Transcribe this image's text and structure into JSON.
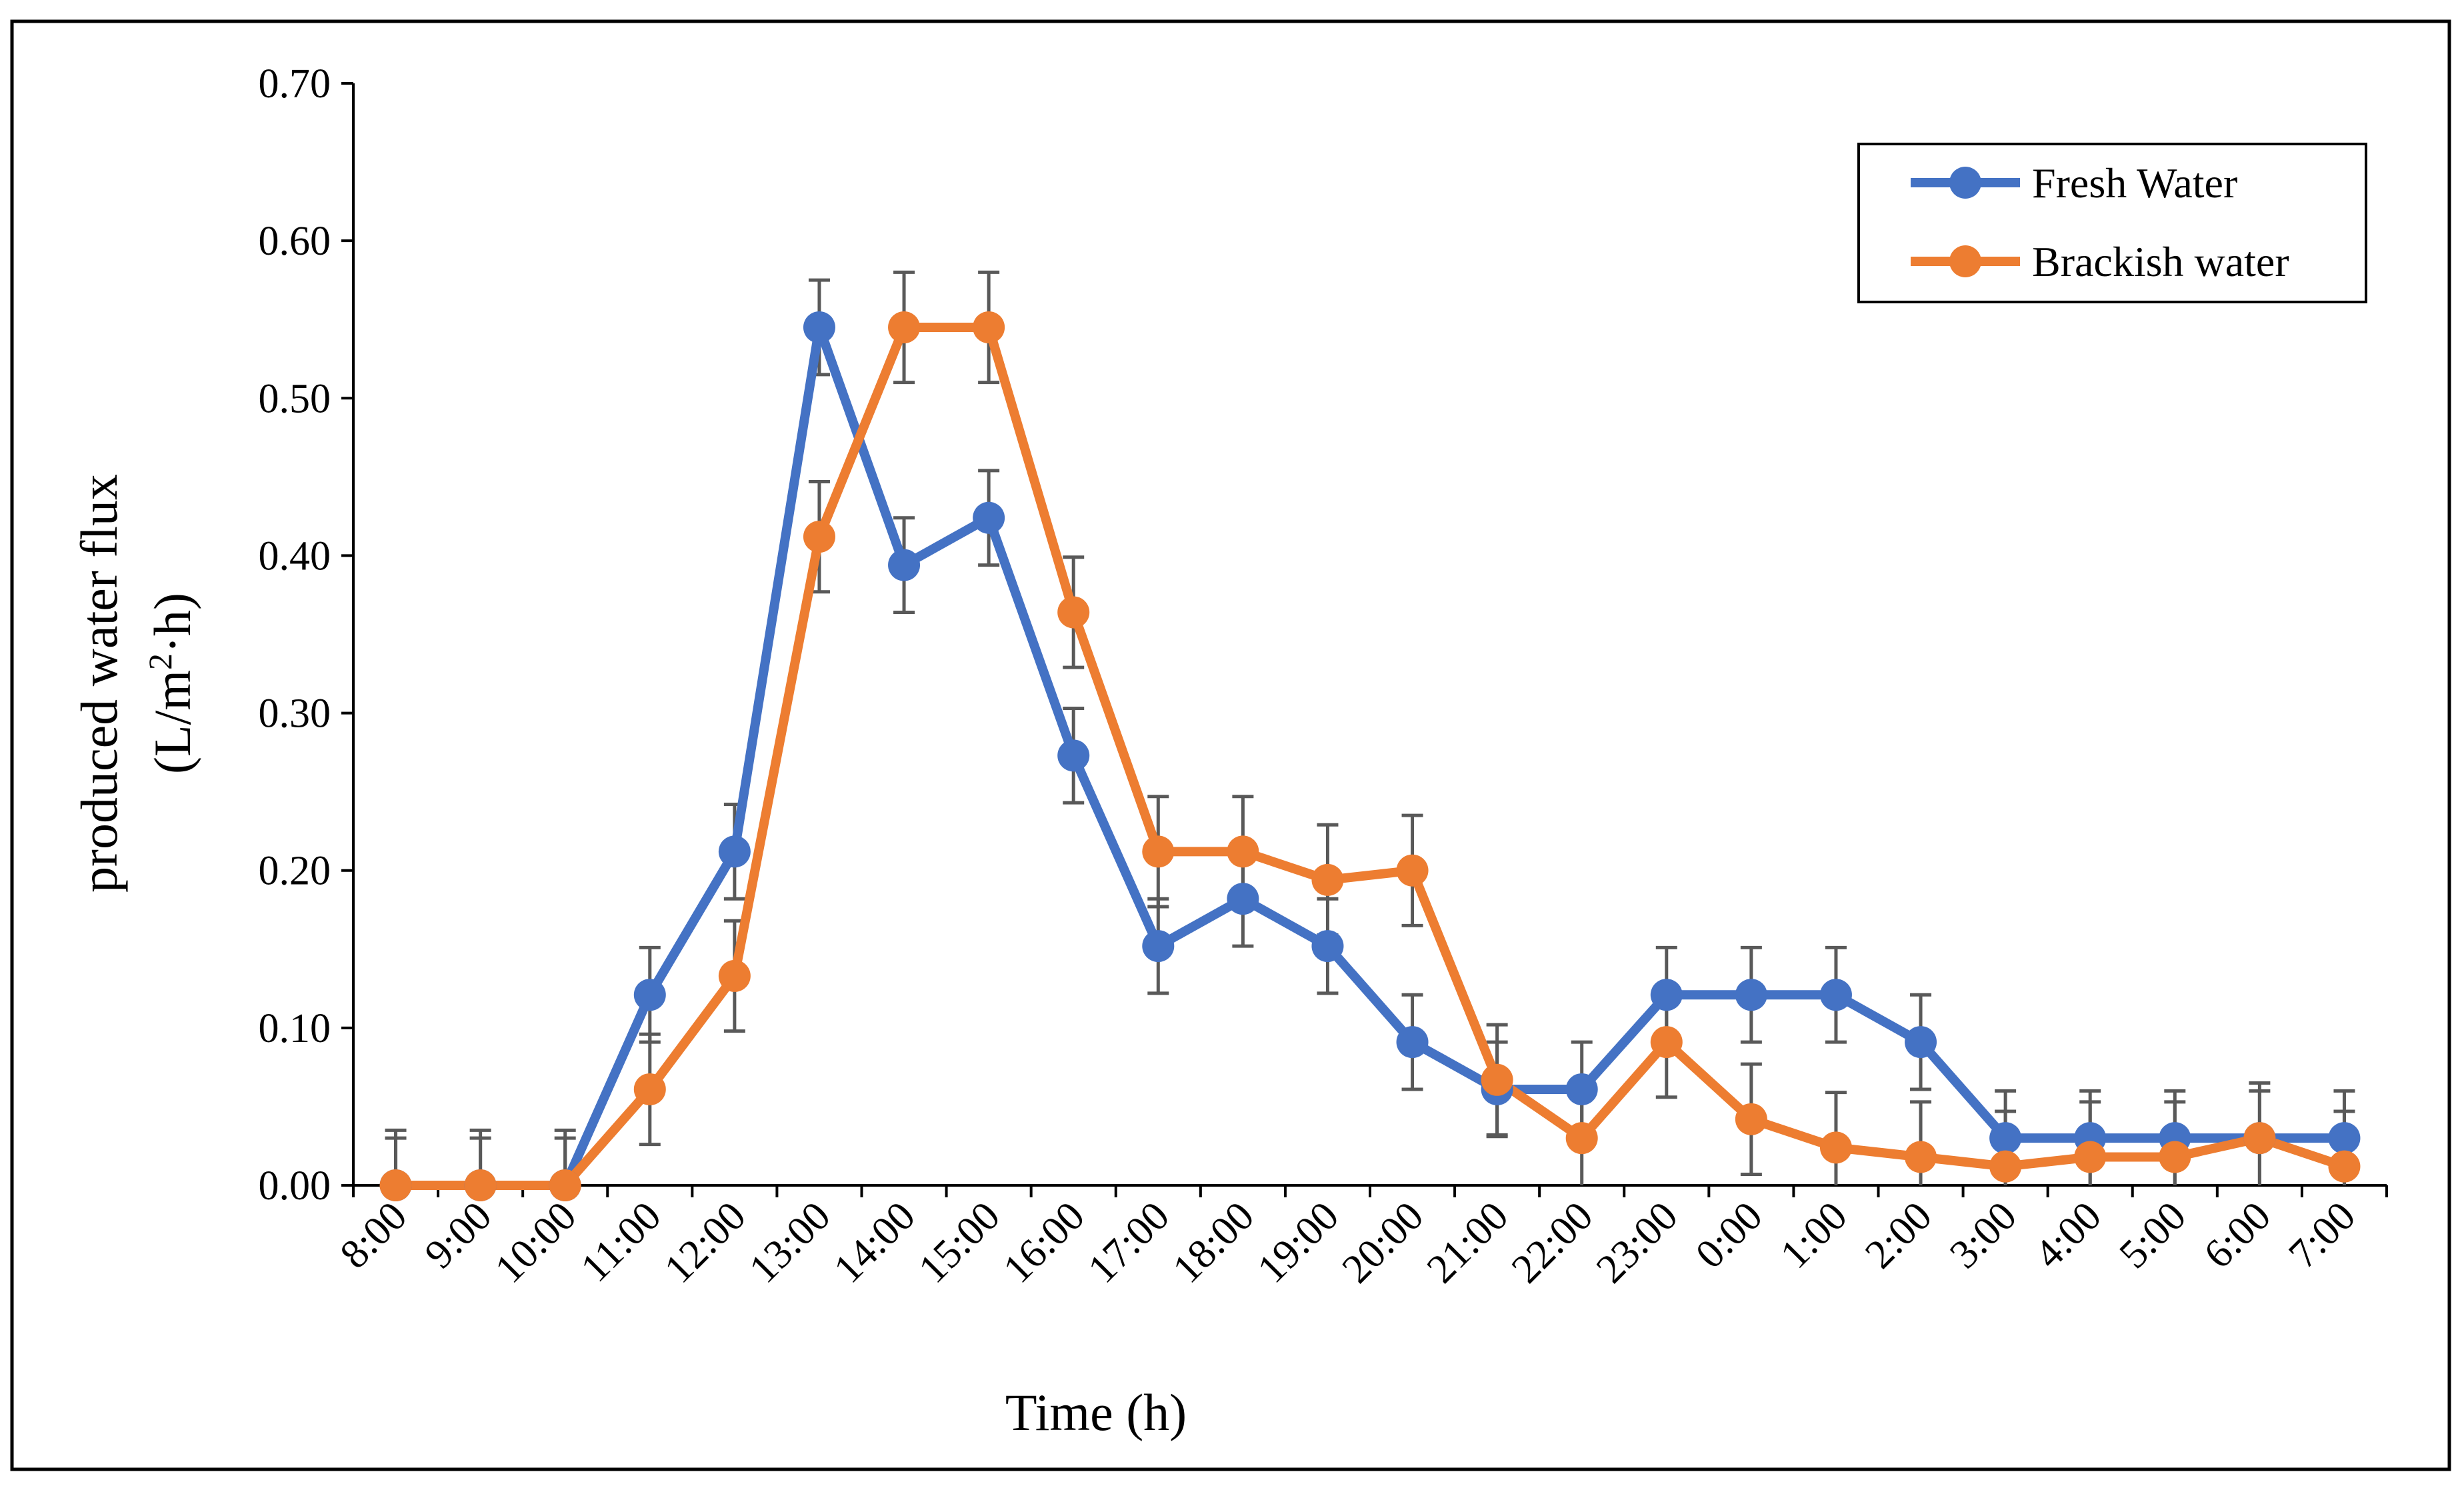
{
  "chart_data": {
    "type": "line",
    "xlabel": "Time (h)",
    "ylabel_line1": "produced water flux",
    "ylabel_line2_prefix": "(L/m",
    "ylabel_line2_sup": "2",
    "ylabel_line2_suffix": "·h)",
    "ylim": [
      0,
      0.7
    ],
    "ytick_values": [
      0,
      0.1,
      0.2,
      0.3,
      0.4,
      0.5,
      0.6,
      0.7
    ],
    "ytick_labels": [
      "0.00",
      "0.10",
      "0.20",
      "0.30",
      "0.40",
      "0.50",
      "0.60",
      "0.70"
    ],
    "categories": [
      "8:00",
      "9:00",
      "10:00",
      "11:00",
      "12:00",
      "13:00",
      "14:00",
      "15:00",
      "16:00",
      "17:00",
      "18:00",
      "19:00",
      "20:00",
      "21:00",
      "22:00",
      "23:00",
      "0:00",
      "1:00",
      "2:00",
      "3:00",
      "4:00",
      "5:00",
      "6:00",
      "7:00"
    ],
    "grid": false,
    "legend_position": "top-right",
    "series": [
      {
        "name": "Fresh Water",
        "color": "#4472c4",
        "values": [
          0,
          0,
          0,
          0.121,
          0.212,
          0.545,
          0.394,
          0.424,
          0.273,
          0.152,
          0.182,
          0.152,
          0.091,
          0.061,
          0.061,
          0.121,
          0.121,
          0.121,
          0.091,
          0.03,
          0.03,
          0.03,
          0.03,
          0.03
        ],
        "error": [
          0.03,
          0.03,
          0.03,
          0.03,
          0.03,
          0.03,
          0.03,
          0.03,
          0.03,
          0.03,
          0.03,
          0.03,
          0.03,
          0.03,
          0.03,
          0.03,
          0.03,
          0.03,
          0.03,
          0.03,
          0.03,
          0.03,
          0.03,
          0.03
        ]
      },
      {
        "name": "Brackish water",
        "color": "#ed7d31",
        "values": [
          0,
          0,
          0,
          0.061,
          0.133,
          0.412,
          0.545,
          0.545,
          0.364,
          0.212,
          0.212,
          0.194,
          0.2,
          0.067,
          0.03,
          0.091,
          0.042,
          0.024,
          0.018,
          0.012,
          0.018,
          0.018,
          0.03,
          0.012
        ],
        "error": [
          0.035,
          0.035,
          0.035,
          0.035,
          0.035,
          0.035,
          0.035,
          0.035,
          0.035,
          0.035,
          0.035,
          0.035,
          0.035,
          0.035,
          0.035,
          0.035,
          0.035,
          0.035,
          0.035,
          0.035,
          0.035,
          0.035,
          0.035,
          0.035
        ]
      }
    ],
    "error_bar_color": "#595959"
  }
}
